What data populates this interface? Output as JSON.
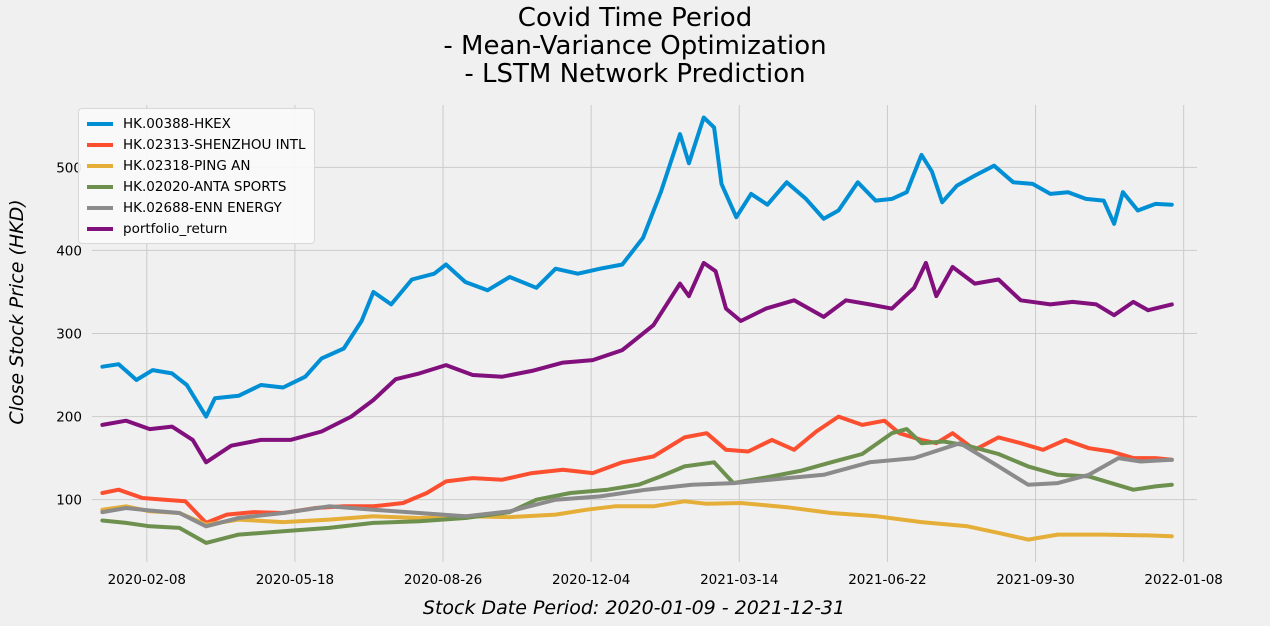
{
  "chart_data": {
    "type": "line",
    "title": [
      "Covid Time Period",
      "- Mean-Variance Optimization",
      "- LSTM Network Prediction"
    ],
    "xlabel": "Stock Date Period: 2020-01-09 - 2021-12-31",
    "ylabel": "Close Stock Price (HKD)",
    "xlim": [
      "2020-01-02",
      "2022-01-17"
    ],
    "ylim": [
      25,
      575
    ],
    "x_ticks": [
      "2020-02-08",
      "2020-05-18",
      "2020-08-26",
      "2020-12-04",
      "2021-03-14",
      "2021-06-22",
      "2021-09-30",
      "2022-01-08"
    ],
    "y_ticks": [
      100,
      200,
      300,
      400,
      500
    ],
    "grid": true,
    "legend_position": "top-left",
    "series": [
      {
        "name": "HK.00388-HKEX",
        "color": "#008fd5",
        "points": [
          [
            "2020-01-09",
            260
          ],
          [
            "2020-01-20",
            263
          ],
          [
            "2020-02-01",
            244
          ],
          [
            "2020-02-12",
            256
          ],
          [
            "2020-02-25",
            252
          ],
          [
            "2020-03-06",
            238
          ],
          [
            "2020-03-19",
            200
          ],
          [
            "2020-03-25",
            222
          ],
          [
            "2020-04-10",
            225
          ],
          [
            "2020-04-25",
            238
          ],
          [
            "2020-05-10",
            235
          ],
          [
            "2020-05-25",
            248
          ],
          [
            "2020-06-05",
            270
          ],
          [
            "2020-06-20",
            282
          ],
          [
            "2020-07-02",
            315
          ],
          [
            "2020-07-10",
            350
          ],
          [
            "2020-07-22",
            335
          ],
          [
            "2020-08-05",
            365
          ],
          [
            "2020-08-20",
            372
          ],
          [
            "2020-08-28",
            383
          ],
          [
            "2020-09-10",
            362
          ],
          [
            "2020-09-25",
            352
          ],
          [
            "2020-10-10",
            368
          ],
          [
            "2020-10-28",
            355
          ],
          [
            "2020-11-10",
            378
          ],
          [
            "2020-11-25",
            372
          ],
          [
            "2020-12-10",
            378
          ],
          [
            "2020-12-25",
            383
          ],
          [
            "2021-01-08",
            415
          ],
          [
            "2021-01-20",
            470
          ],
          [
            "2021-02-02",
            540
          ],
          [
            "2021-02-08",
            505
          ],
          [
            "2021-02-18",
            560
          ],
          [
            "2021-02-25",
            548
          ],
          [
            "2021-03-02",
            480
          ],
          [
            "2021-03-12",
            440
          ],
          [
            "2021-03-22",
            468
          ],
          [
            "2021-04-02",
            455
          ],
          [
            "2021-04-15",
            482
          ],
          [
            "2021-04-28",
            462
          ],
          [
            "2021-05-10",
            438
          ],
          [
            "2021-05-20",
            448
          ],
          [
            "2021-06-02",
            482
          ],
          [
            "2021-06-14",
            460
          ],
          [
            "2021-06-25",
            462
          ],
          [
            "2021-07-05",
            470
          ],
          [
            "2021-07-15",
            515
          ],
          [
            "2021-07-22",
            495
          ],
          [
            "2021-07-29",
            458
          ],
          [
            "2021-08-08",
            478
          ],
          [
            "2021-08-20",
            490
          ],
          [
            "2021-09-02",
            502
          ],
          [
            "2021-09-15",
            482
          ],
          [
            "2021-09-28",
            480
          ],
          [
            "2021-10-10",
            468
          ],
          [
            "2021-10-22",
            470
          ],
          [
            "2021-11-03",
            462
          ],
          [
            "2021-11-15",
            460
          ],
          [
            "2021-11-22",
            432
          ],
          [
            "2021-11-28",
            470
          ],
          [
            "2021-12-08",
            448
          ],
          [
            "2021-12-20",
            456
          ],
          [
            "2021-12-31",
            455
          ]
        ]
      },
      {
        "name": "HK.02313-SHENZHOU INTL",
        "color": "#fc4f30",
        "points": [
          [
            "2020-01-09",
            108
          ],
          [
            "2020-01-20",
            112
          ],
          [
            "2020-02-05",
            102
          ],
          [
            "2020-02-20",
            100
          ],
          [
            "2020-03-05",
            98
          ],
          [
            "2020-03-19",
            72
          ],
          [
            "2020-04-02",
            82
          ],
          [
            "2020-04-20",
            85
          ],
          [
            "2020-05-10",
            84
          ],
          [
            "2020-06-01",
            90
          ],
          [
            "2020-06-20",
            92
          ],
          [
            "2020-07-10",
            92
          ],
          [
            "2020-07-30",
            96
          ],
          [
            "2020-08-15",
            108
          ],
          [
            "2020-08-28",
            122
          ],
          [
            "2020-09-15",
            126
          ],
          [
            "2020-10-05",
            124
          ],
          [
            "2020-10-25",
            132
          ],
          [
            "2020-11-15",
            136
          ],
          [
            "2020-12-05",
            132
          ],
          [
            "2020-12-25",
            145
          ],
          [
            "2021-01-15",
            152
          ],
          [
            "2021-02-05",
            175
          ],
          [
            "2021-02-20",
            180
          ],
          [
            "2021-03-05",
            160
          ],
          [
            "2021-03-20",
            158
          ],
          [
            "2021-04-05",
            172
          ],
          [
            "2021-04-20",
            160
          ],
          [
            "2021-05-05",
            182
          ],
          [
            "2021-05-20",
            200
          ],
          [
            "2021-06-05",
            190
          ],
          [
            "2021-06-20",
            195
          ],
          [
            "2021-06-30",
            180
          ],
          [
            "2021-07-15",
            172
          ],
          [
            "2021-07-25",
            168
          ],
          [
            "2021-08-05",
            180
          ],
          [
            "2021-08-20",
            160
          ],
          [
            "2021-09-05",
            175
          ],
          [
            "2021-09-20",
            168
          ],
          [
            "2021-10-05",
            160
          ],
          [
            "2021-10-20",
            172
          ],
          [
            "2021-11-05",
            162
          ],
          [
            "2021-11-20",
            158
          ],
          [
            "2021-12-05",
            150
          ],
          [
            "2021-12-20",
            150
          ],
          [
            "2021-12-31",
            148
          ]
        ]
      },
      {
        "name": "HK.02318-PING AN",
        "color": "#e5ae38",
        "points": [
          [
            "2020-01-09",
            88
          ],
          [
            "2020-01-25",
            92
          ],
          [
            "2020-02-10",
            86
          ],
          [
            "2020-03-01",
            84
          ],
          [
            "2020-03-19",
            70
          ],
          [
            "2020-04-10",
            76
          ],
          [
            "2020-05-10",
            73
          ],
          [
            "2020-06-10",
            76
          ],
          [
            "2020-07-10",
            80
          ],
          [
            "2020-08-10",
            78
          ],
          [
            "2020-09-10",
            80
          ],
          [
            "2020-10-10",
            79
          ],
          [
            "2020-11-10",
            82
          ],
          [
            "2020-12-01",
            88
          ],
          [
            "2020-12-20",
            92
          ],
          [
            "2021-01-15",
            92
          ],
          [
            "2021-02-05",
            98
          ],
          [
            "2021-02-20",
            95
          ],
          [
            "2021-03-15",
            96
          ],
          [
            "2021-04-15",
            91
          ],
          [
            "2021-05-15",
            84
          ],
          [
            "2021-06-15",
            80
          ],
          [
            "2021-07-15",
            73
          ],
          [
            "2021-08-15",
            68
          ],
          [
            "2021-09-05",
            60
          ],
          [
            "2021-09-25",
            52
          ],
          [
            "2021-10-15",
            58
          ],
          [
            "2021-11-15",
            58
          ],
          [
            "2021-12-15",
            57
          ],
          [
            "2021-12-31",
            56
          ]
        ]
      },
      {
        "name": "HK.02020-ANTA SPORTS",
        "color": "#6d904f",
        "points": [
          [
            "2020-01-09",
            75
          ],
          [
            "2020-01-25",
            72
          ],
          [
            "2020-02-10",
            68
          ],
          [
            "2020-03-01",
            66
          ],
          [
            "2020-03-19",
            48
          ],
          [
            "2020-04-10",
            58
          ],
          [
            "2020-05-10",
            62
          ],
          [
            "2020-06-10",
            66
          ],
          [
            "2020-07-10",
            72
          ],
          [
            "2020-08-10",
            74
          ],
          [
            "2020-09-10",
            78
          ],
          [
            "2020-10-10",
            85
          ],
          [
            "2020-10-28",
            100
          ],
          [
            "2020-11-20",
            108
          ],
          [
            "2020-12-15",
            112
          ],
          [
            "2021-01-05",
            118
          ],
          [
            "2021-01-20",
            128
          ],
          [
            "2021-02-05",
            140
          ],
          [
            "2021-02-25",
            145
          ],
          [
            "2021-03-10",
            120
          ],
          [
            "2021-04-05",
            128
          ],
          [
            "2021-04-25",
            135
          ],
          [
            "2021-05-15",
            145
          ],
          [
            "2021-06-05",
            155
          ],
          [
            "2021-06-25",
            180
          ],
          [
            "2021-07-05",
            185
          ],
          [
            "2021-07-15",
            168
          ],
          [
            "2021-07-30",
            170
          ],
          [
            "2021-08-15",
            165
          ],
          [
            "2021-09-05",
            155
          ],
          [
            "2021-09-25",
            140
          ],
          [
            "2021-10-15",
            130
          ],
          [
            "2021-11-05",
            128
          ],
          [
            "2021-11-20",
            120
          ],
          [
            "2021-12-05",
            112
          ],
          [
            "2021-12-20",
            116
          ],
          [
            "2021-12-31",
            118
          ]
        ]
      },
      {
        "name": "HK.02688-ENN ENERGY",
        "color": "#8b8b8b",
        "points": [
          [
            "2020-01-09",
            85
          ],
          [
            "2020-01-25",
            90
          ],
          [
            "2020-02-10",
            87
          ],
          [
            "2020-03-01",
            84
          ],
          [
            "2020-03-19",
            68
          ],
          [
            "2020-04-10",
            78
          ],
          [
            "2020-05-10",
            84
          ],
          [
            "2020-06-10",
            92
          ],
          [
            "2020-07-10",
            88
          ],
          [
            "2020-08-10",
            84
          ],
          [
            "2020-09-10",
            80
          ],
          [
            "2020-10-10",
            86
          ],
          [
            "2020-11-10",
            100
          ],
          [
            "2020-12-10",
            104
          ],
          [
            "2021-01-10",
            112
          ],
          [
            "2021-02-10",
            118
          ],
          [
            "2021-03-10",
            120
          ],
          [
            "2021-04-10",
            125
          ],
          [
            "2021-05-10",
            130
          ],
          [
            "2021-06-10",
            145
          ],
          [
            "2021-07-10",
            150
          ],
          [
            "2021-08-10",
            168
          ],
          [
            "2021-09-05",
            140
          ],
          [
            "2021-09-25",
            118
          ],
          [
            "2021-10-15",
            120
          ],
          [
            "2021-11-05",
            130
          ],
          [
            "2021-11-25",
            150
          ],
          [
            "2021-12-10",
            146
          ],
          [
            "2021-12-31",
            148
          ]
        ]
      },
      {
        "name": "portfolio_return",
        "color": "#810f7c",
        "points": [
          [
            "2020-01-09",
            190
          ],
          [
            "2020-01-25",
            195
          ],
          [
            "2020-02-10",
            185
          ],
          [
            "2020-02-25",
            188
          ],
          [
            "2020-03-10",
            172
          ],
          [
            "2020-03-19",
            145
          ],
          [
            "2020-04-05",
            165
          ],
          [
            "2020-04-25",
            172
          ],
          [
            "2020-05-15",
            172
          ],
          [
            "2020-06-05",
            182
          ],
          [
            "2020-06-25",
            200
          ],
          [
            "2020-07-10",
            220
          ],
          [
            "2020-07-25",
            245
          ],
          [
            "2020-08-10",
            252
          ],
          [
            "2020-08-28",
            262
          ],
          [
            "2020-09-15",
            250
          ],
          [
            "2020-10-05",
            248
          ],
          [
            "2020-10-25",
            255
          ],
          [
            "2020-11-15",
            265
          ],
          [
            "2020-12-05",
            268
          ],
          [
            "2020-12-25",
            280
          ],
          [
            "2021-01-15",
            310
          ],
          [
            "2021-02-02",
            360
          ],
          [
            "2021-02-08",
            345
          ],
          [
            "2021-02-18",
            385
          ],
          [
            "2021-02-26",
            375
          ],
          [
            "2021-03-05",
            330
          ],
          [
            "2021-03-15",
            315
          ],
          [
            "2021-04-01",
            330
          ],
          [
            "2021-04-20",
            340
          ],
          [
            "2021-05-10",
            320
          ],
          [
            "2021-05-25",
            340
          ],
          [
            "2021-06-10",
            335
          ],
          [
            "2021-06-25",
            330
          ],
          [
            "2021-07-10",
            355
          ],
          [
            "2021-07-18",
            385
          ],
          [
            "2021-07-25",
            345
          ],
          [
            "2021-08-05",
            380
          ],
          [
            "2021-08-20",
            360
          ],
          [
            "2021-09-05",
            365
          ],
          [
            "2021-09-20",
            340
          ],
          [
            "2021-10-10",
            335
          ],
          [
            "2021-10-25",
            338
          ],
          [
            "2021-11-10",
            335
          ],
          [
            "2021-11-22",
            322
          ],
          [
            "2021-12-05",
            338
          ],
          [
            "2021-12-15",
            328
          ],
          [
            "2021-12-31",
            335
          ]
        ]
      }
    ]
  }
}
